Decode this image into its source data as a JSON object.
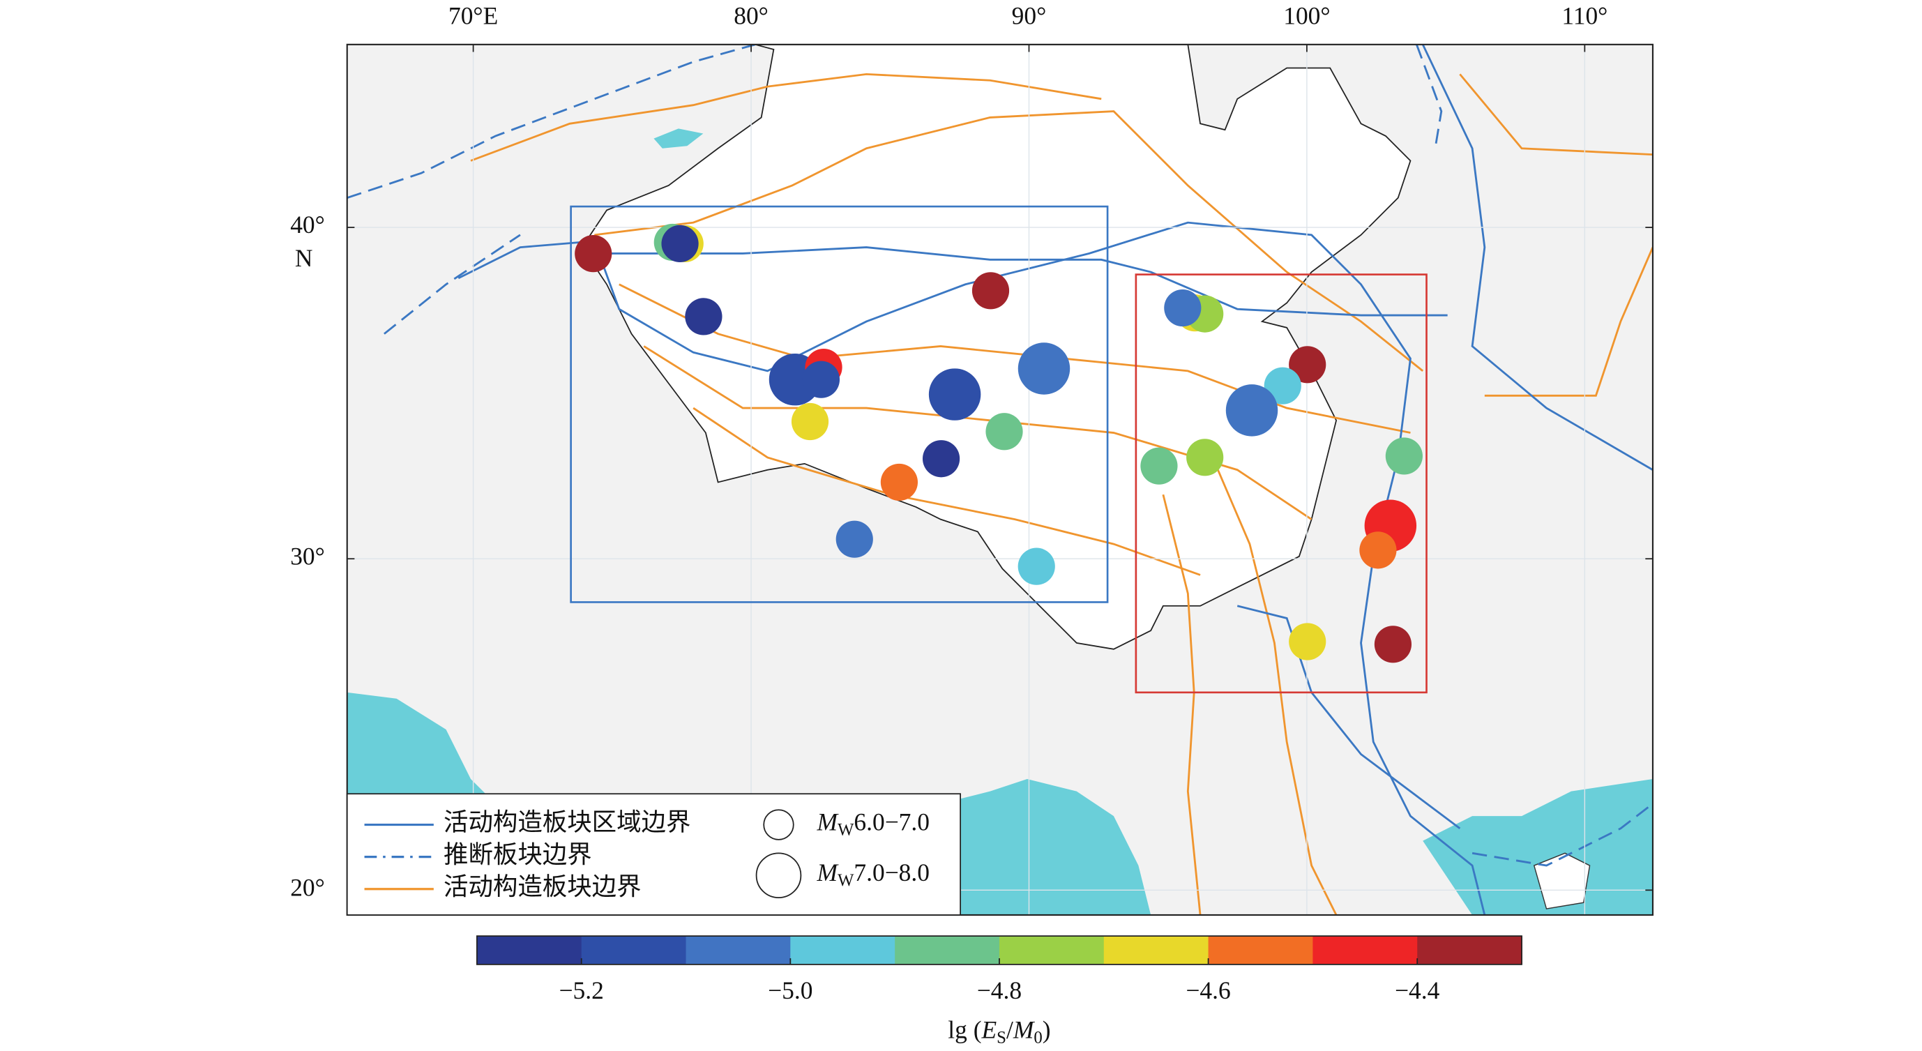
{
  "chart_data": {
    "type": "map",
    "xlim": [
      65.46,
      112.45
    ],
    "ylim": [
      19.25,
      45.52
    ],
    "xticks": [
      {
        "value": 70,
        "label": "70°E"
      },
      {
        "value": 80,
        "label": "80°"
      },
      {
        "value": 90,
        "label": "90°"
      },
      {
        "value": 100,
        "label": "100°"
      },
      {
        "value": 110,
        "label": "110°"
      }
    ],
    "yticks": [
      {
        "value": 20,
        "label": "20°"
      },
      {
        "value": 30,
        "label": "30°"
      },
      {
        "value": 40,
        "label": "40°"
      }
    ],
    "lat_unit": "N",
    "grid": true,
    "points": {
      "lon": [
        74.32,
        77.17,
        77.62,
        77.44,
        78.29,
        88.62,
        81.58,
        82.61,
        82.52,
        87.33,
        90.54,
        82.12,
        89.11,
        86.84,
        85.33,
        83.72,
        90.27,
        95.97,
        96.33,
        95.53,
        100.02,
        99.13,
        98.02,
        94.68,
        96.33,
        103.5,
        103.01,
        102.56,
        100.02,
        103.1
      ],
      "lat": [
        39.21,
        39.55,
        39.51,
        39.51,
        37.31,
        38.09,
        35.41,
        35.78,
        35.41,
        34.96,
        35.74,
        34.14,
        33.84,
        33.02,
        32.31,
        30.59,
        29.77,
        37.42,
        37.39,
        37.57,
        35.86,
        35.22,
        34.48,
        32.8,
        33.06,
        33.1,
        31.0,
        30.26,
        27.5,
        27.42
      ],
      "lg": [
        -4.35,
        -4.85,
        -4.65,
        -5.25,
        -5.25,
        -4.35,
        -5.15,
        -4.45,
        -5.15,
        -5.15,
        -5.05,
        -4.65,
        -4.85,
        -5.25,
        -4.55,
        -5.05,
        -4.95,
        -4.65,
        -4.75,
        -5.05,
        -4.35,
        -4.95,
        -5.05,
        -4.85,
        -4.75,
        -4.85,
        -4.45,
        -4.55,
        -4.65,
        -4.35
      ],
      "mw": [
        6.5,
        6.5,
        6.5,
        6.5,
        6.5,
        6.5,
        7.5,
        6.5,
        6.5,
        7.5,
        7.5,
        6.5,
        6.5,
        6.5,
        6.5,
        6.5,
        6.5,
        6.5,
        6.5,
        6.5,
        6.5,
        6.5,
        7.5,
        6.5,
        6.5,
        6.5,
        7.5,
        6.5,
        6.5,
        6.5
      ]
    },
    "colorbar": {
      "clim": [
        -5.3,
        -4.3
      ],
      "colors": [
        "#2b3990",
        "#2e4fa8",
        "#4174c2",
        "#5ec8dc",
        "#6cc48c",
        "#9bd046",
        "#e8d82a",
        "#f26e24",
        "#ee2526",
        "#a1242b"
      ],
      "ticks": [
        {
          "value": -5.2,
          "label": "−5.2"
        },
        {
          "value": -5.0,
          "label": "−5.0"
        },
        {
          "value": -4.8,
          "label": "−4.8"
        },
        {
          "value": -4.6,
          "label": "−4.6"
        },
        {
          "value": -4.4,
          "label": "−4.4"
        }
      ],
      "label": [
        "lg (",
        "E",
        "S",
        "/",
        "M",
        "0",
        ")"
      ]
    },
    "legend": {
      "lines": [
        {
          "name": "活动构造板块区域边界",
          "color": "#3b78c3",
          "style": "solid"
        },
        {
          "name": "推断板块边界",
          "color": "#3b78c3",
          "style": "dashdot"
        },
        {
          "name": "活动构造板块边界",
          "color": "#f0952e",
          "style": "solid"
        }
      ],
      "sizes": [
        {
          "symbol": "M",
          "sub": "W",
          "range": "6.0−7.0"
        },
        {
          "symbol": "M",
          "sub": "W",
          "range": "7.0−8.0"
        }
      ]
    }
  }
}
